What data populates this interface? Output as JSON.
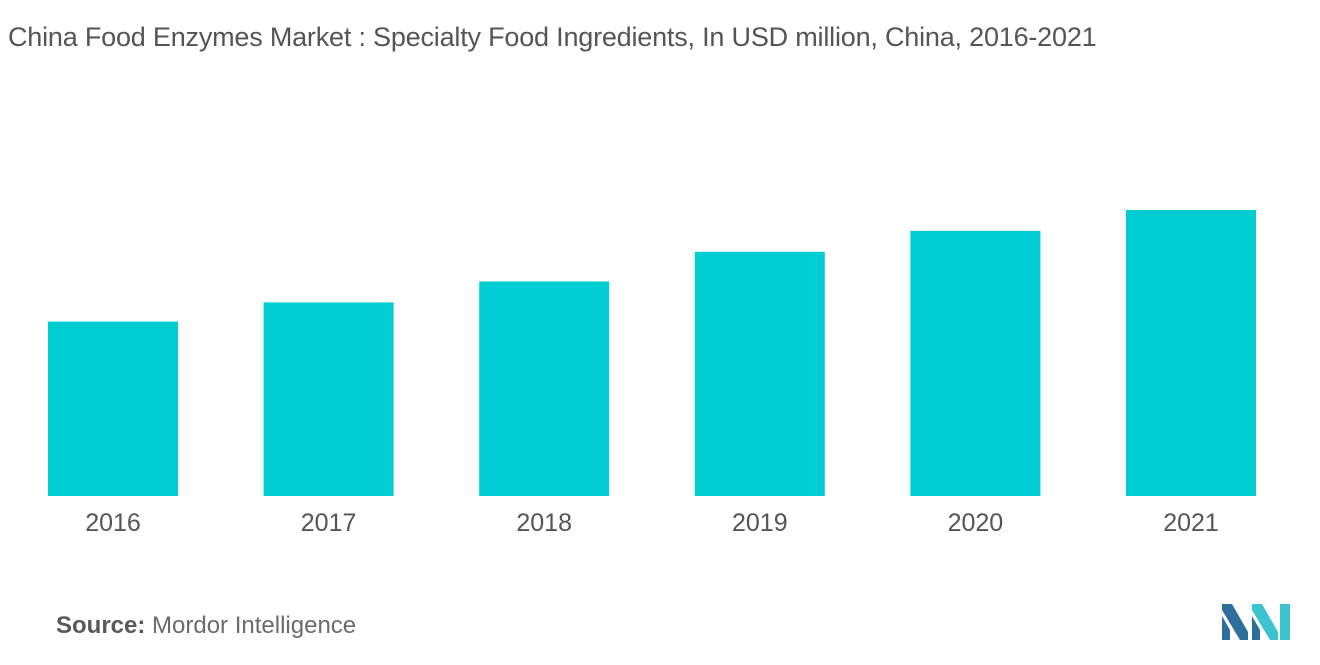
{
  "title": "China Food Enzymes Market :  Specialty Food Ingredients, In USD million,  China, 2016-2021",
  "source": {
    "label": "Source:",
    "value": "Mordor Intelligence"
  },
  "colors": {
    "bar": "#00cdd1",
    "axis_text": "#555555",
    "logo_dark": "#2e6e9a",
    "logo_light": "#3cc3d0"
  },
  "logo": {
    "icon": "mordor-intelligence-logo-icon"
  },
  "chart_data": {
    "type": "bar",
    "categories": [
      "2016",
      "2017",
      "2018",
      "2019",
      "2020",
      "2021"
    ],
    "values": [
      100,
      111,
      123,
      140,
      152,
      164
    ],
    "title": "",
    "xlabel": "",
    "ylabel": "",
    "ylim": [
      0,
      250
    ],
    "grid": false,
    "legend": "none"
  }
}
